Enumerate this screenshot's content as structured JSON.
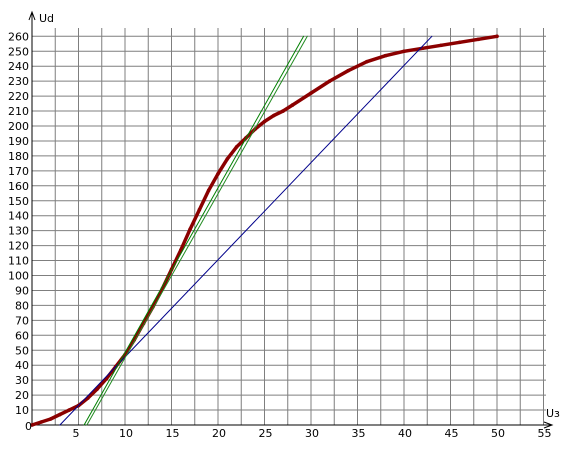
{
  "chart_data": {
    "type": "line",
    "title": "",
    "xlabel": "Uз",
    "ylabel": "Ud",
    "xlim": [
      0,
      55
    ],
    "ylim": [
      0,
      265
    ],
    "grid": true,
    "x_ticks": [
      "0",
      "5",
      "10",
      "15",
      "20",
      "25",
      "30",
      "35",
      "40",
      "45",
      "50",
      "55"
    ],
    "y_ticks": [
      "10",
      "20",
      "30",
      "40",
      "50",
      "60",
      "70",
      "80",
      "90",
      "100",
      "110",
      "120",
      "130",
      "140",
      "150",
      "160",
      "170",
      "180",
      "190",
      "200",
      "210",
      "220",
      "230",
      "240",
      "250",
      "260"
    ],
    "series": [
      {
        "color": "#8b0000",
        "style": "thick",
        "points": [
          [
            0,
            0
          ],
          [
            1,
            2
          ],
          [
            2,
            4
          ],
          [
            3,
            7
          ],
          [
            4,
            10
          ],
          [
            5,
            13
          ],
          [
            6,
            18
          ],
          [
            7,
            24
          ],
          [
            8,
            31
          ],
          [
            9,
            39
          ],
          [
            10,
            47
          ],
          [
            11,
            57
          ],
          [
            12,
            68
          ],
          [
            13,
            79
          ],
          [
            14,
            91
          ],
          [
            15,
            104
          ],
          [
            16,
            117
          ],
          [
            17,
            131
          ],
          [
            18,
            144
          ],
          [
            19,
            157
          ],
          [
            20,
            168
          ],
          [
            21,
            178
          ],
          [
            22,
            186
          ],
          [
            23,
            192
          ],
          [
            24,
            198
          ],
          [
            25,
            203
          ],
          [
            26,
            207
          ],
          [
            27,
            210
          ],
          [
            28,
            214
          ],
          [
            30,
            222
          ],
          [
            32,
            230
          ],
          [
            34,
            237
          ],
          [
            36,
            243
          ],
          [
            38,
            247
          ],
          [
            40,
            250
          ],
          [
            42,
            252
          ],
          [
            44,
            254
          ],
          [
            46,
            256
          ],
          [
            48,
            258
          ],
          [
            50,
            260
          ]
        ]
      },
      {
        "color": "#00008b",
        "style": "thin",
        "points": [
          [
            3,
            0
          ],
          [
            43,
            260
          ]
        ]
      },
      {
        "color": "#008000",
        "style": "thin",
        "points": [
          [
            5.6,
            0
          ],
          [
            29.2,
            260
          ]
        ]
      },
      {
        "color": "#228b22",
        "style": "thin",
        "points": [
          [
            5.9,
            0
          ],
          [
            29.6,
            260
          ]
        ]
      }
    ]
  }
}
